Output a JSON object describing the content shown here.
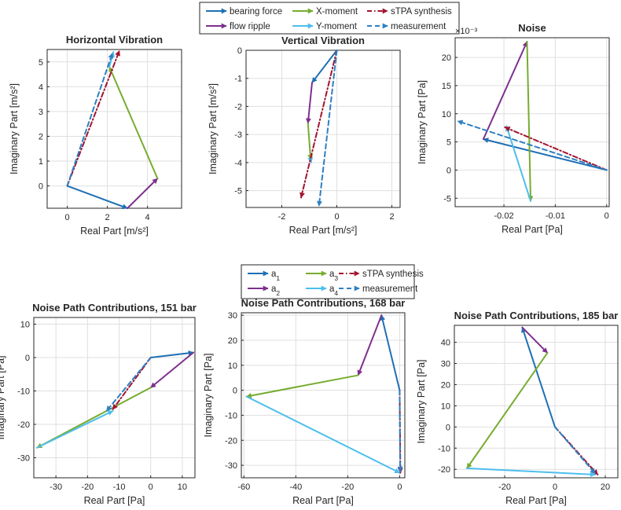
{
  "colors": {
    "blue": "#1f6fb4",
    "green": "#77ac30",
    "purple": "#7e2f8e",
    "lightblue": "#4dbeee",
    "darkred": "#a2142f",
    "dashblue": "#2e7fc2"
  },
  "legends": [
    {
      "entries": [
        {
          "label": "bearing force",
          "color": "blue",
          "style": "solid"
        },
        {
          "label": "X-moment",
          "color": "green",
          "style": "solid"
        },
        {
          "label": "sTPA synthesis",
          "color": "darkred",
          "style": "dashdot"
        },
        {
          "label": "flow ripple",
          "color": "purple",
          "style": "solid"
        },
        {
          "label": "Y-moment",
          "color": "lightblue",
          "style": "solid"
        },
        {
          "label": "measurement",
          "color": "dashblue",
          "style": "dashed"
        }
      ]
    },
    {
      "entries": [
        {
          "label": "a",
          "sub": "1",
          "color": "blue",
          "style": "solid"
        },
        {
          "label": "a",
          "sub": "3",
          "color": "green",
          "style": "solid"
        },
        {
          "label": "sTPA synthesis",
          "color": "darkred",
          "style": "dashdot"
        },
        {
          "label": "a",
          "sub": "2",
          "color": "purple",
          "style": "solid"
        },
        {
          "label": "a",
          "sub": "4",
          "color": "lightblue",
          "style": "solid"
        },
        {
          "label": "measurement",
          "color": "dashblue",
          "style": "dashed"
        }
      ]
    }
  ],
  "chart_data": [
    {
      "type": "line",
      "title": "Horizontal Vibration",
      "xlabel": "Real Part [m/s²]",
      "ylabel": "Imaginary Part [m/s²]",
      "xlim": [
        -1,
        5.7
      ],
      "ylim": [
        -0.9,
        5.5
      ],
      "xticks": [
        0,
        2,
        4
      ],
      "xticklabels": [
        "0",
        "2",
        "4"
      ],
      "yticks": [
        0,
        1,
        2,
        3,
        4,
        5
      ],
      "yticklabels": [
        "0",
        "1",
        "2",
        "3",
        "4",
        "5"
      ],
      "series": [
        {
          "name": "bearing force",
          "color": "blue",
          "style": "solid",
          "x": [
            0,
            3.0
          ],
          "y": [
            0,
            -0.9
          ]
        },
        {
          "name": "flow ripple",
          "color": "purple",
          "style": "solid",
          "x": [
            3.0,
            4.5
          ],
          "y": [
            -0.9,
            0.3
          ]
        },
        {
          "name": "X-moment",
          "color": "green",
          "style": "solid",
          "x": [
            4.5,
            2.1
          ],
          "y": [
            0.3,
            4.8
          ]
        },
        {
          "name": "Y-moment",
          "color": "lightblue",
          "style": "solid",
          "x": [
            2.1,
            2.3
          ],
          "y": [
            4.8,
            5.4
          ]
        },
        {
          "name": "sTPA synthesis",
          "color": "darkred",
          "style": "dashdot",
          "x": [
            0,
            2.6
          ],
          "y": [
            0,
            5.45
          ]
        },
        {
          "name": "measurement",
          "color": "dashblue",
          "style": "dashed",
          "x": [
            0,
            2.25
          ],
          "y": [
            0,
            5.35
          ]
        }
      ]
    },
    {
      "type": "line",
      "title": "Vertical Vibration",
      "xlabel": "Real Part [m/s²]",
      "ylabel": "Imaginary Part [m/s²]",
      "xlim": [
        -3.3,
        2.3
      ],
      "ylim": [
        -5.6,
        0
      ],
      "xticks": [
        -2,
        0,
        2
      ],
      "xticklabels": [
        "-2",
        "0",
        "2"
      ],
      "yticks": [
        0,
        -1,
        -2,
        -3,
        -4,
        -5
      ],
      "yticklabels": [
        "0",
        "-1",
        "-2",
        "-3",
        "-4",
        "-5"
      ],
      "series": [
        {
          "name": "bearing force",
          "color": "blue",
          "style": "solid",
          "x": [
            0,
            -0.9
          ],
          "y": [
            0,
            -1.15
          ]
        },
        {
          "name": "flow ripple",
          "color": "purple",
          "style": "solid",
          "x": [
            -0.9,
            -1.05
          ],
          "y": [
            -1.15,
            -2.6
          ]
        },
        {
          "name": "X-moment",
          "color": "green",
          "style": "solid",
          "x": [
            -1.05,
            -0.95
          ],
          "y": [
            -2.6,
            -3.9
          ]
        },
        {
          "name": "Y-moment",
          "color": "lightblue",
          "style": "solid",
          "x": [
            -0.95,
            -0.93
          ],
          "y": [
            -3.9,
            -4.0
          ]
        },
        {
          "name": "sTPA synthesis",
          "color": "darkred",
          "style": "dashdot",
          "x": [
            0,
            -1.3
          ],
          "y": [
            0,
            -5.25
          ]
        },
        {
          "name": "measurement",
          "color": "dashblue",
          "style": "dashed",
          "x": [
            0,
            -0.65
          ],
          "y": [
            0,
            -5.55
          ]
        }
      ]
    },
    {
      "type": "line",
      "title": "Noise",
      "xlabel": "Real Part [Pa]",
      "ylabel": "Imaginary Part [Pa]",
      "yscale_label": "×10⁻³",
      "xlim": [
        -0.0295,
        0.0005
      ],
      "ylim": [
        -0.0065,
        0.0235
      ],
      "xticks": [
        -0.02,
        -0.01,
        0
      ],
      "xticklabels": [
        "-0.02",
        "-0.01",
        "0"
      ],
      "yticks": [
        -0.005,
        0,
        0.005,
        0.01,
        0.015,
        0.02
      ],
      "yticklabels": [
        "-5",
        "0",
        "5",
        "10",
        "15",
        "20"
      ],
      "series": [
        {
          "name": "bearing force",
          "color": "blue",
          "style": "solid",
          "x": [
            0,
            -0.024
          ],
          "y": [
            0,
            0.0055
          ]
        },
        {
          "name": "flow ripple",
          "color": "purple",
          "style": "solid",
          "x": [
            -0.024,
            -0.0155
          ],
          "y": [
            0.0055,
            0.0228
          ]
        },
        {
          "name": "X-moment",
          "color": "green",
          "style": "solid",
          "x": [
            -0.0155,
            -0.0148
          ],
          "y": [
            0.0228,
            -0.0055
          ]
        },
        {
          "name": "Y-moment",
          "color": "lightblue",
          "style": "solid",
          "x": [
            -0.0148,
            -0.0195
          ],
          "y": [
            -0.0055,
            0.0078
          ]
        },
        {
          "name": "sTPA synthesis",
          "color": "darkred",
          "style": "dashdot",
          "x": [
            0,
            -0.0198
          ],
          "y": [
            0,
            0.0076
          ]
        },
        {
          "name": "measurement",
          "color": "dashblue",
          "style": "dashed",
          "x": [
            0,
            -0.029
          ],
          "y": [
            0,
            0.0087
          ]
        }
      ]
    },
    {
      "type": "line",
      "title": "Noise Path Contributions, 151 bar",
      "xlabel": "Real Part [Pa]",
      "ylabel": "Imaginary Part [Pa]",
      "xlim": [
        -37,
        14
      ],
      "ylim": [
        -36,
        12
      ],
      "xticks": [
        -30,
        -20,
        -10,
        0,
        10
      ],
      "xticklabels": [
        "-30",
        "-20",
        "-10",
        "0",
        "10"
      ],
      "yticks": [
        10,
        0,
        -10,
        -20,
        -30
      ],
      "yticklabels": [
        "10",
        "0",
        "-10",
        "-20",
        "-30"
      ],
      "series": [
        {
          "name": "a1",
          "color": "blue",
          "style": "solid",
          "x": [
            0,
            13.5
          ],
          "y": [
            0,
            1.5
          ]
        },
        {
          "name": "a2",
          "color": "purple",
          "style": "solid",
          "x": [
            13.5,
            0
          ],
          "y": [
            1.5,
            -9
          ]
        },
        {
          "name": "a3",
          "color": "green",
          "style": "solid",
          "x": [
            0,
            -36
          ],
          "y": [
            -9,
            -27
          ]
        },
        {
          "name": "a4",
          "color": "lightblue",
          "style": "solid",
          "x": [
            -36,
            -12
          ],
          "y": [
            -27,
            -16
          ]
        },
        {
          "name": "sTPA synthesis",
          "color": "darkred",
          "style": "dashdot",
          "x": [
            0,
            -12
          ],
          "y": [
            0,
            -15.5
          ]
        },
        {
          "name": "measurement",
          "color": "dashblue",
          "style": "dashed",
          "x": [
            0,
            -14
          ],
          "y": [
            0,
            -16
          ]
        }
      ]
    },
    {
      "type": "line",
      "title": "Noise Path Contributions, 168 bar",
      "xlabel": "Real Part [Pa]",
      "ylabel": "Imaginary Part [Pa]",
      "xlim": [
        -61,
        2
      ],
      "ylim": [
        -35,
        31
      ],
      "xticks": [
        -60,
        -40,
        -20,
        0
      ],
      "xticklabels": [
        "-60",
        "-40",
        "-20",
        "0"
      ],
      "yticks": [
        30,
        20,
        10,
        0,
        -10,
        -20,
        -30
      ],
      "yticklabels": [
        "30",
        "20",
        "10",
        "0",
        "-10",
        "-20",
        "-30"
      ],
      "series": [
        {
          "name": "a1",
          "color": "blue",
          "style": "solid",
          "x": [
            0,
            -7
          ],
          "y": [
            0,
            30
          ]
        },
        {
          "name": "a2",
          "color": "purple",
          "style": "solid",
          "x": [
            -7,
            -16
          ],
          "y": [
            30,
            6
          ]
        },
        {
          "name": "a3",
          "color": "green",
          "style": "solid",
          "x": [
            -16,
            -59
          ],
          "y": [
            6,
            -2.5
          ]
        },
        {
          "name": "a4",
          "color": "lightblue",
          "style": "solid",
          "x": [
            -59,
            0
          ],
          "y": [
            -2.5,
            -33
          ]
        },
        {
          "name": "sTPA synthesis",
          "color": "darkred",
          "style": "dashdot",
          "x": [
            0,
            0.3
          ],
          "y": [
            0,
            -33
          ]
        },
        {
          "name": "measurement",
          "color": "dashblue",
          "style": "dashed",
          "x": [
            0,
            0.2
          ],
          "y": [
            0,
            -32.5
          ]
        }
      ]
    },
    {
      "type": "line",
      "title": "Noise Path Contributions, 185 bar",
      "xlabel": "Real Part [Pa]",
      "ylabel": "Imaginary Part [Pa]",
      "xlim": [
        -40,
        25
      ],
      "ylim": [
        -24,
        48
      ],
      "xticks": [
        -20,
        0,
        20
      ],
      "xticklabels": [
        "-20",
        "0",
        "20"
      ],
      "yticks": [
        40,
        30,
        20,
        10,
        0,
        -10,
        -20
      ],
      "yticklabels": [
        "40",
        "30",
        "20",
        "10",
        "0",
        "-10",
        "-20"
      ],
      "series": [
        {
          "name": "a1",
          "color": "blue",
          "style": "solid",
          "x": [
            0,
            -13
          ],
          "y": [
            0,
            47
          ]
        },
        {
          "name": "a2",
          "color": "purple",
          "style": "solid",
          "x": [
            -13,
            -3
          ],
          "y": [
            47,
            35
          ]
        },
        {
          "name": "a3",
          "color": "green",
          "style": "solid",
          "x": [
            -3,
            -35
          ],
          "y": [
            35,
            -19.5
          ]
        },
        {
          "name": "a4",
          "color": "lightblue",
          "style": "solid",
          "x": [
            -35,
            16
          ],
          "y": [
            -19.5,
            -22.5
          ]
        },
        {
          "name": "sTPA synthesis",
          "color": "darkred",
          "style": "dashdot",
          "x": [
            0,
            17
          ],
          "y": [
            0,
            -22.5
          ]
        },
        {
          "name": "measurement",
          "color": "dashblue",
          "style": "dashed",
          "x": [
            0,
            16
          ],
          "y": [
            0,
            -22
          ]
        }
      ]
    }
  ]
}
